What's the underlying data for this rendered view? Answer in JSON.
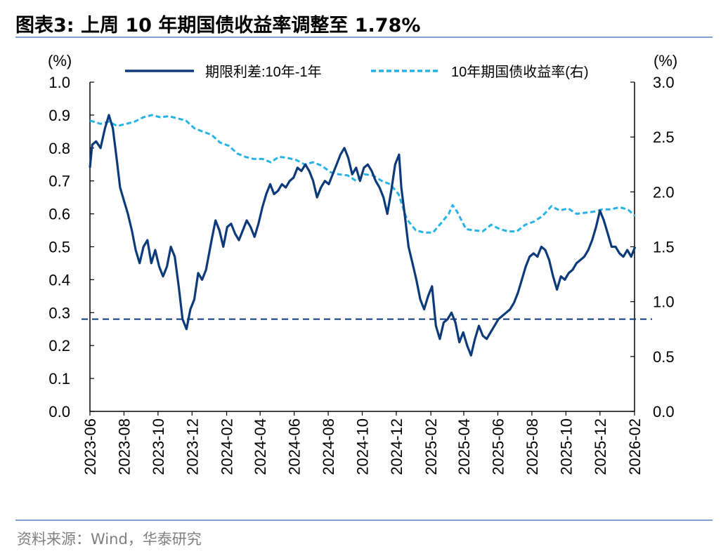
{
  "header": {
    "title": "图表3:   上周 10 年期国债收益率调整至 1.78%"
  },
  "footer": {
    "source": "资料来源：Wind，华泰研究"
  },
  "chart_data": {
    "type": "line",
    "y_left_unit": "(%)",
    "y_right_unit": "(%)",
    "ylim_left": [
      0.0,
      1.0
    ],
    "ylim_right": [
      0.0,
      3.0
    ],
    "y_left_ticks": [
      "0.0",
      "0.1",
      "0.2",
      "0.3",
      "0.4",
      "0.5",
      "0.6",
      "0.7",
      "0.8",
      "0.9",
      "1.0"
    ],
    "y_right_ticks": [
      "0.0",
      "0.5",
      "1.0",
      "1.5",
      "2.0",
      "2.5",
      "3.0"
    ],
    "x_ticks": [
      "2023-06",
      "2023-08",
      "2023-10",
      "2023-12",
      "2024-02",
      "2024-04",
      "2024-06",
      "2024-08",
      "2024-10",
      "2024-12",
      "2025-02",
      "2025-04",
      "2025-06",
      "2025-08",
      "2025-10",
      "2025-12",
      "2026-02"
    ],
    "legend_position": "top",
    "series": [
      {
        "name": "期限利差:10年-1年",
        "axis": "left",
        "color": "#0d3b7a",
        "style": "solid",
        "points": [
          [
            "2023-06-01",
            0.74
          ],
          [
            "2023-06-05",
            0.81
          ],
          [
            "2023-06-12",
            0.82
          ],
          [
            "2023-06-20",
            0.8
          ],
          [
            "2023-06-28",
            0.86
          ],
          [
            "2023-07-05",
            0.9
          ],
          [
            "2023-07-12",
            0.86
          ],
          [
            "2023-07-18",
            0.78
          ],
          [
            "2023-07-25",
            0.68
          ],
          [
            "2023-08-01",
            0.64
          ],
          [
            "2023-08-08",
            0.6
          ],
          [
            "2023-08-15",
            0.55
          ],
          [
            "2023-08-22",
            0.49
          ],
          [
            "2023-08-29",
            0.45
          ],
          [
            "2023-09-05",
            0.5
          ],
          [
            "2023-09-12",
            0.52
          ],
          [
            "2023-09-19",
            0.45
          ],
          [
            "2023-09-26",
            0.49
          ],
          [
            "2023-10-03",
            0.44
          ],
          [
            "2023-10-10",
            0.41
          ],
          [
            "2023-10-17",
            0.44
          ],
          [
            "2023-10-24",
            0.5
          ],
          [
            "2023-10-31",
            0.47
          ],
          [
            "2023-11-07",
            0.38
          ],
          [
            "2023-11-14",
            0.28
          ],
          [
            "2023-11-21",
            0.25
          ],
          [
            "2023-11-28",
            0.31
          ],
          [
            "2023-12-05",
            0.34
          ],
          [
            "2023-12-12",
            0.42
          ],
          [
            "2023-12-19",
            0.4
          ],
          [
            "2023-12-26",
            0.43
          ],
          [
            "2024-01-05",
            0.52
          ],
          [
            "2024-01-12",
            0.58
          ],
          [
            "2024-01-19",
            0.55
          ],
          [
            "2024-01-26",
            0.5
          ],
          [
            "2024-02-02",
            0.56
          ],
          [
            "2024-02-09",
            0.57
          ],
          [
            "2024-02-16",
            0.54
          ],
          [
            "2024-02-23",
            0.52
          ],
          [
            "2024-03-01",
            0.55
          ],
          [
            "2024-03-08",
            0.58
          ],
          [
            "2024-03-15",
            0.56
          ],
          [
            "2024-03-22",
            0.53
          ],
          [
            "2024-03-29",
            0.57
          ],
          [
            "2024-04-05",
            0.62
          ],
          [
            "2024-04-12",
            0.66
          ],
          [
            "2024-04-19",
            0.69
          ],
          [
            "2024-04-26",
            0.66
          ],
          [
            "2024-05-03",
            0.67
          ],
          [
            "2024-05-10",
            0.69
          ],
          [
            "2024-05-17",
            0.68
          ],
          [
            "2024-05-24",
            0.7
          ],
          [
            "2024-05-31",
            0.71
          ],
          [
            "2024-06-07",
            0.74
          ],
          [
            "2024-06-14",
            0.73
          ],
          [
            "2024-06-21",
            0.75
          ],
          [
            "2024-06-28",
            0.73
          ],
          [
            "2024-07-05",
            0.7
          ],
          [
            "2024-07-12",
            0.65
          ],
          [
            "2024-07-19",
            0.68
          ],
          [
            "2024-07-26",
            0.7
          ],
          [
            "2024-08-02",
            0.69
          ],
          [
            "2024-08-09",
            0.72
          ],
          [
            "2024-08-16",
            0.75
          ],
          [
            "2024-08-23",
            0.78
          ],
          [
            "2024-08-30",
            0.8
          ],
          [
            "2024-09-06",
            0.77
          ],
          [
            "2024-09-13",
            0.72
          ],
          [
            "2024-09-20",
            0.74
          ],
          [
            "2024-09-27",
            0.7
          ],
          [
            "2024-10-04",
            0.74
          ],
          [
            "2024-10-11",
            0.75
          ],
          [
            "2024-10-18",
            0.73
          ],
          [
            "2024-10-25",
            0.7
          ],
          [
            "2024-11-01",
            0.68
          ],
          [
            "2024-11-08",
            0.65
          ],
          [
            "2024-11-15",
            0.6
          ],
          [
            "2024-11-22",
            0.67
          ],
          [
            "2024-11-29",
            0.75
          ],
          [
            "2024-12-06",
            0.78
          ],
          [
            "2024-12-10",
            0.68
          ],
          [
            "2024-12-16",
            0.6
          ],
          [
            "2024-12-23",
            0.5
          ],
          [
            "2024-12-30",
            0.45
          ],
          [
            "2025-01-06",
            0.4
          ],
          [
            "2025-01-13",
            0.34
          ],
          [
            "2025-01-20",
            0.31
          ],
          [
            "2025-01-27",
            0.35
          ],
          [
            "2025-02-03",
            0.38
          ],
          [
            "2025-02-10",
            0.26
          ],
          [
            "2025-02-17",
            0.22
          ],
          [
            "2025-02-24",
            0.27
          ],
          [
            "2025-03-03",
            0.28
          ],
          [
            "2025-03-10",
            0.3
          ],
          [
            "2025-03-17",
            0.27
          ],
          [
            "2025-03-24",
            0.21
          ],
          [
            "2025-03-31",
            0.24
          ],
          [
            "2025-04-07",
            0.2
          ],
          [
            "2025-04-14",
            0.17
          ],
          [
            "2025-04-21",
            0.22
          ],
          [
            "2025-04-28",
            0.26
          ],
          [
            "2025-05-05",
            0.23
          ],
          [
            "2025-05-12",
            0.22
          ],
          [
            "2025-05-19",
            0.24
          ],
          [
            "2025-05-26",
            0.26
          ],
          [
            "2025-06-02",
            0.28
          ],
          [
            "2025-06-09",
            0.29
          ],
          [
            "2025-06-16",
            0.3
          ],
          [
            "2025-06-23",
            0.31
          ],
          [
            "2025-06-30",
            0.33
          ],
          [
            "2025-07-07",
            0.36
          ],
          [
            "2025-07-14",
            0.4
          ],
          [
            "2025-07-21",
            0.44
          ],
          [
            "2025-07-28",
            0.47
          ],
          [
            "2025-08-04",
            0.48
          ],
          [
            "2025-08-11",
            0.47
          ],
          [
            "2025-08-18",
            0.5
          ],
          [
            "2025-08-25",
            0.49
          ],
          [
            "2025-09-01",
            0.46
          ],
          [
            "2025-09-08",
            0.41
          ],
          [
            "2025-09-15",
            0.37
          ],
          [
            "2025-09-22",
            0.41
          ],
          [
            "2025-09-29",
            0.4
          ],
          [
            "2025-10-06",
            0.42
          ],
          [
            "2025-10-13",
            0.43
          ],
          [
            "2025-10-20",
            0.45
          ],
          [
            "2025-10-27",
            0.46
          ],
          [
            "2025-11-03",
            0.47
          ],
          [
            "2025-11-10",
            0.49
          ],
          [
            "2025-11-17",
            0.52
          ],
          [
            "2025-11-24",
            0.56
          ],
          [
            "2025-12-01",
            0.61
          ],
          [
            "2025-12-08",
            0.58
          ],
          [
            "2025-12-15",
            0.54
          ],
          [
            "2025-12-22",
            0.5
          ],
          [
            "2025-12-29",
            0.5
          ],
          [
            "2026-01-05",
            0.48
          ],
          [
            "2026-01-12",
            0.47
          ],
          [
            "2026-01-19",
            0.49
          ],
          [
            "2026-01-26",
            0.47
          ],
          [
            "2026-02-02",
            0.5
          ]
        ]
      },
      {
        "name": "10年期国债收益率(右)",
        "axis": "right",
        "color": "#27b2e6",
        "style": "dashed",
        "points": [
          [
            "2023-06-01",
            2.65
          ],
          [
            "2023-06-20",
            2.62
          ],
          [
            "2023-07-05",
            2.64
          ],
          [
            "2023-07-20",
            2.6
          ],
          [
            "2023-08-05",
            2.62
          ],
          [
            "2023-08-20",
            2.64
          ],
          [
            "2023-09-05",
            2.68
          ],
          [
            "2023-09-20",
            2.7
          ],
          [
            "2023-10-05",
            2.68
          ],
          [
            "2023-10-20",
            2.69
          ],
          [
            "2023-11-05",
            2.67
          ],
          [
            "2023-11-20",
            2.65
          ],
          [
            "2023-12-05",
            2.58
          ],
          [
            "2023-12-20",
            2.55
          ],
          [
            "2024-01-05",
            2.52
          ],
          [
            "2024-01-20",
            2.45
          ],
          [
            "2024-02-05",
            2.42
          ],
          [
            "2024-02-20",
            2.35
          ],
          [
            "2024-03-05",
            2.32
          ],
          [
            "2024-03-20",
            2.3
          ],
          [
            "2024-04-05",
            2.3
          ],
          [
            "2024-04-20",
            2.27
          ],
          [
            "2024-05-05",
            2.32
          ],
          [
            "2024-05-20",
            2.31
          ],
          [
            "2024-06-05",
            2.29
          ],
          [
            "2024-06-20",
            2.25
          ],
          [
            "2024-07-05",
            2.27
          ],
          [
            "2024-07-20",
            2.24
          ],
          [
            "2024-08-05",
            2.18
          ],
          [
            "2024-08-20",
            2.16
          ],
          [
            "2024-09-05",
            2.15
          ],
          [
            "2024-09-20",
            2.1
          ],
          [
            "2024-10-05",
            2.16
          ],
          [
            "2024-10-20",
            2.15
          ],
          [
            "2024-11-05",
            2.1
          ],
          [
            "2024-11-20",
            2.07
          ],
          [
            "2024-12-05",
            1.98
          ],
          [
            "2024-12-20",
            1.75
          ],
          [
            "2025-01-05",
            1.65
          ],
          [
            "2025-01-20",
            1.63
          ],
          [
            "2025-02-05",
            1.63
          ],
          [
            "2025-02-20",
            1.72
          ],
          [
            "2025-03-05",
            1.8
          ],
          [
            "2025-03-12",
            1.88
          ],
          [
            "2025-03-20",
            1.82
          ],
          [
            "2025-04-05",
            1.66
          ],
          [
            "2025-04-20",
            1.65
          ],
          [
            "2025-05-05",
            1.64
          ],
          [
            "2025-05-20",
            1.7
          ],
          [
            "2025-06-05",
            1.66
          ],
          [
            "2025-06-20",
            1.64
          ],
          [
            "2025-07-05",
            1.64
          ],
          [
            "2025-07-20",
            1.7
          ],
          [
            "2025-08-05",
            1.73
          ],
          [
            "2025-08-20",
            1.78
          ],
          [
            "2025-09-05",
            1.87
          ],
          [
            "2025-09-20",
            1.83
          ],
          [
            "2025-10-05",
            1.85
          ],
          [
            "2025-10-20",
            1.8
          ],
          [
            "2025-11-05",
            1.81
          ],
          [
            "2025-11-20",
            1.82
          ],
          [
            "2025-12-05",
            1.84
          ],
          [
            "2025-12-20",
            1.84
          ],
          [
            "2026-01-05",
            1.86
          ],
          [
            "2026-01-20",
            1.84
          ],
          [
            "2026-02-02",
            1.78
          ]
        ]
      }
    ],
    "reference_line": {
      "axis": "left",
      "value": 0.28,
      "color": "#0d3b7a",
      "style": "dashed"
    }
  }
}
